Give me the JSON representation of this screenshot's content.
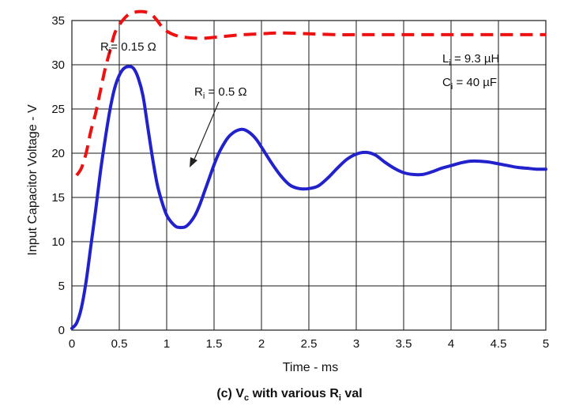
{
  "chart_data": {
    "type": "line",
    "xlabel": "Time - ms",
    "ylabel": "Input Capacitor Voltage - V",
    "xlim": [
      0,
      5
    ],
    "ylim": [
      0,
      35
    ],
    "xticks": [
      "0",
      "0.5",
      "1",
      "1.5",
      "2",
      "2.5",
      "3",
      "3.5",
      "4",
      "4.5",
      "5"
    ],
    "yticks": [
      "0",
      "5",
      "10",
      "15",
      "20",
      "25",
      "30",
      "35"
    ],
    "grid": true,
    "caption": {
      "prefix": "(c) V",
      "sub1": "c",
      "middle": " with various R",
      "sub2": "i",
      "suffix": " val"
    },
    "series": [
      {
        "name": "Ri = 0.15 Ω",
        "color": "#ee1111",
        "style": "dashed",
        "x": [
          0.05,
          0.1,
          0.15,
          0.2,
          0.25,
          0.3,
          0.35,
          0.4,
          0.45,
          0.5,
          0.55,
          0.6,
          0.65,
          0.7,
          0.75,
          0.8,
          0.85,
          0.9,
          0.95,
          1.0,
          1.1,
          1.2,
          1.3,
          1.4,
          1.5,
          1.6,
          1.8,
          2.0,
          2.2,
          2.5,
          2.8,
          3.0,
          3.5,
          4.0,
          4.5,
          5.0
        ],
        "y": [
          17.5,
          18.3,
          20.0,
          22.5,
          24.5,
          27.0,
          29.5,
          31.5,
          33.5,
          34.5,
          35.2,
          35.7,
          35.9,
          36.0,
          36.0,
          35.9,
          35.6,
          35.0,
          34.3,
          33.8,
          33.3,
          33.1,
          33.0,
          33.0,
          33.1,
          33.2,
          33.4,
          33.5,
          33.6,
          33.5,
          33.4,
          33.4,
          33.4,
          33.4,
          33.4,
          33.4
        ]
      },
      {
        "name": "Ri = 0.5 Ω",
        "color": "#2222cc",
        "style": "solid",
        "x": [
          0.0,
          0.05,
          0.1,
          0.15,
          0.2,
          0.25,
          0.3,
          0.35,
          0.4,
          0.45,
          0.5,
          0.55,
          0.6,
          0.65,
          0.7,
          0.75,
          0.8,
          0.85,
          0.9,
          0.95,
          1.0,
          1.05,
          1.1,
          1.15,
          1.2,
          1.25,
          1.3,
          1.35,
          1.4,
          1.45,
          1.5,
          1.55,
          1.6,
          1.65,
          1.7,
          1.75,
          1.8,
          1.85,
          1.9,
          1.95,
          2.0,
          2.1,
          2.2,
          2.3,
          2.4,
          2.5,
          2.6,
          2.7,
          2.8,
          2.9,
          3.0,
          3.1,
          3.2,
          3.3,
          3.4,
          3.5,
          3.6,
          3.7,
          3.8,
          3.9,
          4.0,
          4.1,
          4.2,
          4.3,
          4.4,
          4.5,
          4.6,
          4.7,
          4.8,
          4.9,
          5.0
        ],
        "y": [
          0.2,
          0.8,
          2.5,
          5.5,
          9.5,
          13.5,
          17.8,
          21.5,
          24.8,
          27.3,
          28.8,
          29.6,
          29.8,
          29.6,
          28.5,
          26.5,
          23.0,
          19.5,
          16.5,
          14.5,
          13.0,
          12.2,
          11.7,
          11.6,
          11.7,
          12.2,
          13.0,
          14.2,
          15.7,
          17.2,
          18.7,
          20.0,
          21.0,
          21.8,
          22.3,
          22.6,
          22.7,
          22.5,
          22.1,
          21.5,
          20.7,
          19.0,
          17.5,
          16.4,
          16.0,
          16.0,
          16.3,
          17.2,
          18.3,
          19.3,
          19.9,
          20.1,
          19.8,
          19.0,
          18.3,
          17.8,
          17.6,
          17.6,
          17.9,
          18.3,
          18.6,
          18.9,
          19.1,
          19.1,
          19.0,
          18.8,
          18.6,
          18.4,
          18.3,
          18.2,
          18.2
        ]
      }
    ],
    "annotations": {
      "r015": {
        "base": "R",
        "sub": "i",
        "rest": "= 0.15 Ω"
      },
      "r05": {
        "base": "R",
        "sub": "i",
        "rest": " = 0.5 Ω"
      },
      "li": {
        "base": "L",
        "sub": "i",
        "rest": " = 9.3 µH"
      },
      "ci": {
        "base": "C",
        "sub": "i",
        "rest": " = 40 µF"
      }
    }
  }
}
